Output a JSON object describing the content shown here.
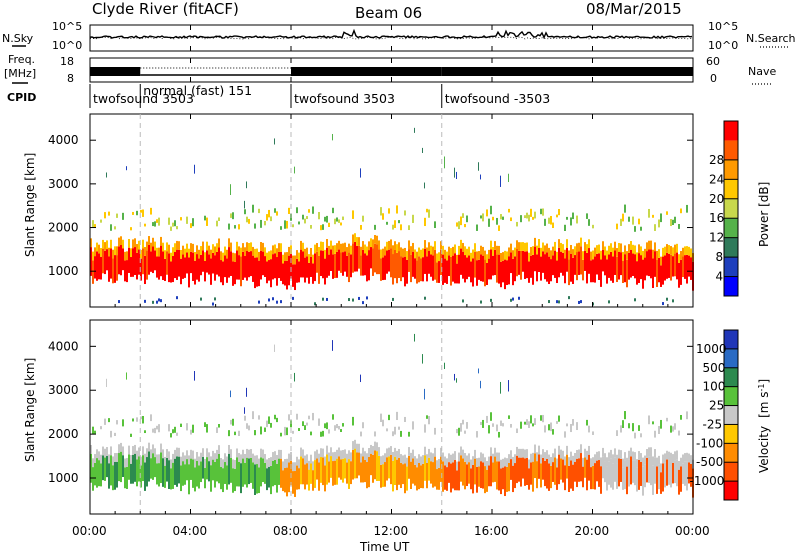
{
  "header": {
    "station": "Clyde River (fitACF)",
    "beam": "Beam 06",
    "date": "08/Mar/2015"
  },
  "strips": {
    "nsky_label": "N.Sky",
    "nsky_top": "10^5",
    "nsky_bottom": "10^0",
    "nsearch_top": "10^5",
    "nsearch_bottom": "10^0",
    "nsearch_label": "N.Search",
    "freq_label": "Freq.",
    "freq_unit": "[MHz]",
    "freq_top": "18",
    "freq_bottom": "8",
    "nave_top": "60",
    "nave_bottom": "0",
    "nave_label": "Nave",
    "cpid_label": "CPID"
  },
  "cpid": [
    {
      "start_hour": 0.0,
      "label": "twofsound 3503"
    },
    {
      "start_hour": 2.0,
      "label": "normal (fast) 151"
    },
    {
      "start_hour": 8.0,
      "label": "twofsound 3503"
    },
    {
      "start_hour": 14.0,
      "label": "twofsound -3503"
    }
  ],
  "axes": {
    "ylabel": "Slant Range [km]",
    "xlabel": "Time UT",
    "xticks": [
      "00:00",
      "04:00",
      "08:00",
      "12:00",
      "16:00",
      "20:00",
      "00:00"
    ],
    "yticks": [
      "1000",
      "2000",
      "3000",
      "4000"
    ],
    "x_range_hours": [
      0,
      24
    ],
    "y_range_km": [
      180,
      4600
    ]
  },
  "power_bar": {
    "title": "Power [dB]",
    "ticks": [
      "4",
      "8",
      "12",
      "16",
      "20",
      "24",
      "28"
    ],
    "colors": [
      "#0000ff",
      "#1e3fbd",
      "#2f7a5a",
      "#55b24a",
      "#c8d84c",
      "#ffc800",
      "#ff9a00",
      "#ff5a00",
      "#ff0000"
    ]
  },
  "velocity_bar": {
    "title": "Velocity",
    "unit": "[m s",
    "unit_sup": "-1",
    "unit_close": "]",
    "ticks": [
      "1000",
      "500",
      "100",
      "25",
      "-25",
      "-100",
      "-500",
      "-1000"
    ],
    "colors": [
      "#2036b8",
      "#2a6bc4",
      "#2c8a4f",
      "#58c23a",
      "#c8c8c8",
      "#ffc800",
      "#ff8c00",
      "#ff5000",
      "#ff0000"
    ]
  },
  "chart_data": {
    "type": "heatmap",
    "title": "Clyde River (fitACF) Beam 06 08/Mar/2015",
    "xlabel": "Time UT",
    "ylabel": "Slant Range [km]",
    "xlim_hours": [
      0,
      24
    ],
    "ylim_km": [
      180,
      4600
    ],
    "power_scale_db": [
      0,
      30
    ],
    "velocity_scale_ms": [
      -1000,
      1000
    ],
    "echo_band_center_km": [
      {
        "hour": 0,
        "km": 1100
      },
      {
        "hour": 2,
        "km": 1150
      },
      {
        "hour": 4,
        "km": 1100
      },
      {
        "hour": 6,
        "km": 1050
      },
      {
        "hour": 8,
        "km": 1000
      },
      {
        "hour": 10,
        "km": 1200
      },
      {
        "hour": 12,
        "km": 1150
      },
      {
        "hour": 14,
        "km": 1100
      },
      {
        "hour": 16,
        "km": 1050
      },
      {
        "hour": 18,
        "km": 1150
      },
      {
        "hour": 20,
        "km": 1100
      },
      {
        "hour": 22,
        "km": 1050
      },
      {
        "hour": 24,
        "km": 1000
      }
    ]
  }
}
